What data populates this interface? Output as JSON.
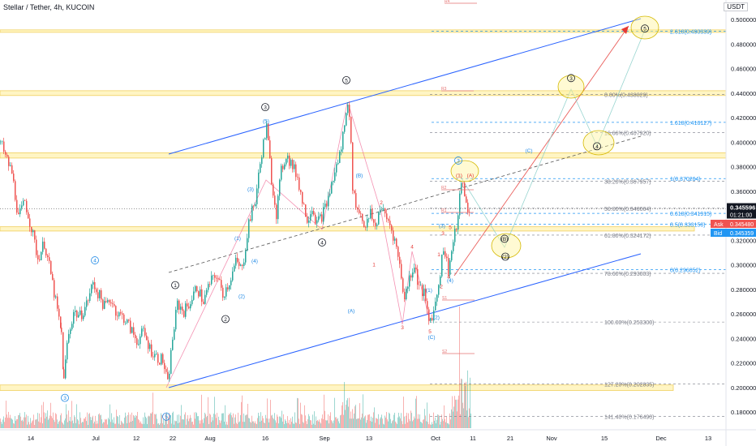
{
  "header": {
    "symbol_title": "Stellar / Tether, 4h, KUCOIN",
    "currency_button": "USDT"
  },
  "price_axis": {
    "ticks": [
      "0.500000",
      "0.480000",
      "0.460000",
      "0.440000",
      "0.420000",
      "0.400000",
      "0.380000",
      "0.360000",
      "0.340000",
      "0.320000",
      "0.300000",
      "0.280000",
      "0.260000",
      "0.240000",
      "0.220000",
      "0.200000",
      "0.180000"
    ],
    "last_price": "0.345596",
    "countdown": "01:21:00",
    "ask_label": "Ask",
    "ask_value": "0.345480",
    "bid_label": "Bid",
    "bid_value": "0.345359"
  },
  "time_axis": {
    "ticks": [
      "14",
      "Jul",
      "12",
      "22",
      "Aug",
      "16",
      "Sep",
      "13",
      "Oct",
      "11",
      "21",
      "Nov",
      "15",
      "Dec",
      "13"
    ]
  },
  "fib_upper": [
    {
      "label": "2.618(0.490339)",
      "price": 0.490339
    },
    {
      "label": "1.618(0.416127)",
      "price": 0.416127
    },
    {
      "label": "1(0.370264)",
      "price": 0.370264
    },
    {
      "label": "0.618(0.341915)",
      "price": 0.341915
    },
    {
      "label": "0.5(0.333158)",
      "price": 0.333158
    },
    {
      "label": "0(0.296052)",
      "price": 0.296052
    }
  ],
  "fib_retracement": [
    {
      "label": "0.00%(0.438829)",
      "price": 0.438829
    },
    {
      "label": "16.66%(0.407920)",
      "price": 0.40792
    },
    {
      "label": "38.20%(0.367957)",
      "price": 0.367957
    },
    {
      "label": "50.00%(0.346064)",
      "price": 0.346064
    },
    {
      "label": "61.80%(0.324172)",
      "price": 0.324172
    },
    {
      "label": "78.60%(0.293003)",
      "price": 0.293003
    },
    {
      "label": "100.00%(0.253300)",
      "price": 0.2533
    },
    {
      "label": "127.20%(0.202835)",
      "price": 0.202835
    },
    {
      "label": "141.40%(0.176490)",
      "price": 0.17649
    }
  ],
  "small_markers": [
    "R4",
    "R3",
    "R2",
    "R1",
    "S1",
    "S2"
  ],
  "wave_labels": [
    {
      "t": "3",
      "color": "#1e88e5",
      "circled": true,
      "x": 80,
      "p": 0.1915
    },
    {
      "t": "4",
      "color": "#1e88e5",
      "circled": true,
      "x": 117,
      "p": 0.3036
    },
    {
      "t": "5",
      "color": "#1e88e5",
      "circled": true,
      "x": 205,
      "p": 0.1762
    },
    {
      "t": "1",
      "color": "#131722",
      "circled": true,
      "x": 216,
      "p": 0.2834
    },
    {
      "t": "2",
      "color": "#131722",
      "circled": true,
      "x": 278,
      "p": 0.2557
    },
    {
      "t": "3",
      "color": "#131722",
      "circled": true,
      "x": 327,
      "p": 0.4285
    },
    {
      "t": "4",
      "color": "#131722",
      "circled": true,
      "x": 397,
      "p": 0.3182
    },
    {
      "t": "5",
      "color": "#131722",
      "circled": true,
      "x": 427,
      "p": 0.4505
    },
    {
      "t": "(1)",
      "color": "#1e88e5",
      "circled": false,
      "x": 293,
      "p": 0.3219
    },
    {
      "t": "(2)",
      "color": "#1e88e5",
      "circled": false,
      "x": 298,
      "p": 0.2744
    },
    {
      "t": "(3)",
      "color": "#1e88e5",
      "circled": false,
      "x": 309,
      "p": 0.3617
    },
    {
      "t": "(4)",
      "color": "#1e88e5",
      "circled": false,
      "x": 314,
      "p": 0.3034
    },
    {
      "t": "(5)",
      "color": "#1e88e5",
      "circled": false,
      "x": 328,
      "p": 0.4174
    },
    {
      "t": "(A)",
      "color": "#1e88e5",
      "circled": false,
      "x": 433,
      "p": 0.2626
    },
    {
      "t": "(B)",
      "color": "#1e88e5",
      "circled": false,
      "x": 443,
      "p": 0.3731
    },
    {
      "t": "(C)",
      "color": "#1e88e5",
      "circled": false,
      "x": 532,
      "p": 0.2411
    },
    {
      "t": "(1)",
      "color": "#1e88e5",
      "circled": false,
      "x": 529,
      "p": 0.2796
    },
    {
      "t": "(2)",
      "color": "#1e88e5",
      "circled": false,
      "x": 538,
      "p": 0.2573
    },
    {
      "t": "(3)",
      "color": "#1e88e5",
      "circled": false,
      "x": 545,
      "p": 0.3322
    },
    {
      "t": "(4)",
      "color": "#1e88e5",
      "circled": false,
      "x": 555,
      "p": 0.2876
    },
    {
      "t": "3",
      "color": "#1e88e5",
      "circled": true,
      "x": 565,
      "p": 0.385
    },
    {
      "t": "(C)",
      "color": "#1e88e5",
      "circled": false,
      "x": 652,
      "p": 0.3932
    },
    {
      "t": "1",
      "color": "#e53935",
      "circled": false,
      "x": 461,
      "p": 0.3003
    },
    {
      "t": "2",
      "color": "#e53935",
      "circled": false,
      "x": 470,
      "p": 0.3508
    },
    {
      "t": "3",
      "color": "#e53935",
      "circled": false,
      "x": 496,
      "p": 0.2492
    },
    {
      "t": "4",
      "color": "#e53935",
      "circled": false,
      "x": 508,
      "p": 0.3148
    },
    {
      "t": "5",
      "color": "#e53935",
      "circled": false,
      "x": 530,
      "p": 0.2459
    },
    {
      "t": "1",
      "color": "#e53935",
      "circled": false,
      "x": 541,
      "p": 0.3085
    },
    {
      "t": "2",
      "color": "#e53935",
      "circled": false,
      "x": 544,
      "p": 0.2824
    },
    {
      "t": "3",
      "color": "#e53935",
      "circled": false,
      "x": 546,
      "p": 0.3257
    },
    {
      "t": "4",
      "color": "#e53935",
      "circled": false,
      "x": 553,
      "p": 0.2905
    },
    {
      "t": "5",
      "color": "#e53935",
      "circled": false,
      "x": 555,
      "p": 0.3306
    },
    {
      "t": "(1)",
      "color": "#e53935",
      "circled": false,
      "x": 566,
      "p": 0.3732
    },
    {
      "t": "(A)",
      "color": "#e53935",
      "circled": false,
      "x": 580,
      "p": 0.3732
    },
    {
      "t": "(B)",
      "color": "#131722",
      "circled": true,
      "x": 622,
      "p": 0.3212
    },
    {
      "t": "(2)",
      "color": "#131722",
      "circled": true,
      "x": 623,
      "p": 0.3066
    },
    {
      "t": "3",
      "color": "#131722",
      "circled": true,
      "x": 704,
      "p": 0.4522
    },
    {
      "t": "4",
      "color": "#131722",
      "circled": true,
      "x": 736,
      "p": 0.3966
    },
    {
      "t": "5",
      "color": "#131722",
      "circled": true,
      "x": 795,
      "p": 0.4926
    }
  ],
  "chart_data": {
    "type": "candlestick",
    "title": "Stellar / Tether, 4h, KUCOIN",
    "y_range": [
      0.168,
      0.508
    ],
    "y_ticks": [
      0.5,
      0.48,
      0.46,
      0.44,
      0.42,
      0.4,
      0.38,
      0.36,
      0.34,
      0.32,
      0.3,
      0.28,
      0.26,
      0.24,
      0.22,
      0.2,
      0.18
    ],
    "x_ticks": [
      "14",
      "Jul",
      "12",
      "22",
      "Aug",
      "16",
      "Sep",
      "13",
      "Oct",
      "11",
      "21",
      "Nov",
      "15",
      "Dec",
      "13"
    ],
    "price_path": [
      {
        "i": 0,
        "p": 0.4
      },
      {
        "i": 6,
        "p": 0.388
      },
      {
        "i": 14,
        "p": 0.375
      },
      {
        "i": 22,
        "p": 0.338
      },
      {
        "i": 30,
        "p": 0.352
      },
      {
        "i": 38,
        "p": 0.33
      },
      {
        "i": 46,
        "p": 0.305
      },
      {
        "i": 54,
        "p": 0.318
      },
      {
        "i": 62,
        "p": 0.292
      },
      {
        "i": 70,
        "p": 0.262
      },
      {
        "i": 75,
        "p": 0.244
      },
      {
        "i": 78,
        "p": 0.205
      },
      {
        "i": 82,
        "p": 0.236
      },
      {
        "i": 90,
        "p": 0.262
      },
      {
        "i": 98,
        "p": 0.258
      },
      {
        "i": 106,
        "p": 0.268
      },
      {
        "i": 114,
        "p": 0.285
      },
      {
        "i": 120,
        "p": 0.277
      },
      {
        "i": 128,
        "p": 0.266
      },
      {
        "i": 136,
        "p": 0.272
      },
      {
        "i": 144,
        "p": 0.26
      },
      {
        "i": 152,
        "p": 0.257
      },
      {
        "i": 160,
        "p": 0.248
      },
      {
        "i": 168,
        "p": 0.238
      },
      {
        "i": 176,
        "p": 0.245
      },
      {
        "i": 184,
        "p": 0.232
      },
      {
        "i": 192,
        "p": 0.225
      },
      {
        "i": 200,
        "p": 0.222
      },
      {
        "i": 206,
        "p": 0.202
      },
      {
        "i": 212,
        "p": 0.24
      },
      {
        "i": 218,
        "p": 0.268
      },
      {
        "i": 226,
        "p": 0.262
      },
      {
        "i": 234,
        "p": 0.27
      },
      {
        "i": 242,
        "p": 0.282
      },
      {
        "i": 250,
        "p": 0.27
      },
      {
        "i": 258,
        "p": 0.285
      },
      {
        "i": 266,
        "p": 0.292
      },
      {
        "i": 274,
        "p": 0.276
      },
      {
        "i": 282,
        "p": 0.286
      },
      {
        "i": 290,
        "p": 0.302
      },
      {
        "i": 298,
        "p": 0.296
      },
      {
        "i": 306,
        "p": 0.335
      },
      {
        "i": 314,
        "p": 0.352
      },
      {
        "i": 322,
        "p": 0.392
      },
      {
        "i": 328,
        "p": 0.412
      },
      {
        "i": 334,
        "p": 0.37
      },
      {
        "i": 340,
        "p": 0.342
      },
      {
        "i": 346,
        "p": 0.376
      },
      {
        "i": 352,
        "p": 0.39
      },
      {
        "i": 360,
        "p": 0.38
      },
      {
        "i": 366,
        "p": 0.372
      },
      {
        "i": 372,
        "p": 0.352
      },
      {
        "i": 378,
        "p": 0.338
      },
      {
        "i": 384,
        "p": 0.347
      },
      {
        "i": 390,
        "p": 0.334
      },
      {
        "i": 396,
        "p": 0.34
      },
      {
        "i": 402,
        "p": 0.35
      },
      {
        "i": 408,
        "p": 0.365
      },
      {
        "i": 414,
        "p": 0.38
      },
      {
        "i": 420,
        "p": 0.395
      },
      {
        "i": 426,
        "p": 0.428
      },
      {
        "i": 430,
        "p": 0.425
      },
      {
        "i": 434,
        "p": 0.365
      },
      {
        "i": 438,
        "p": 0.348
      },
      {
        "i": 444,
        "p": 0.342
      },
      {
        "i": 450,
        "p": 0.33
      },
      {
        "i": 456,
        "p": 0.342
      },
      {
        "i": 462,
        "p": 0.33
      },
      {
        "i": 468,
        "p": 0.348
      },
      {
        "i": 474,
        "p": 0.34
      },
      {
        "i": 480,
        "p": 0.333
      },
      {
        "i": 486,
        "p": 0.32
      },
      {
        "i": 492,
        "p": 0.3
      },
      {
        "i": 498,
        "p": 0.272
      },
      {
        "i": 504,
        "p": 0.29
      },
      {
        "i": 510,
        "p": 0.3
      },
      {
        "i": 516,
        "p": 0.282
      },
      {
        "i": 522,
        "p": 0.276
      },
      {
        "i": 528,
        "p": 0.254
      },
      {
        "i": 534,
        "p": 0.262
      },
      {
        "i": 540,
        "p": 0.285
      },
      {
        "i": 546,
        "p": 0.315
      },
      {
        "i": 552,
        "p": 0.296
      },
      {
        "i": 558,
        "p": 0.318
      },
      {
        "i": 564,
        "p": 0.338
      },
      {
        "i": 568,
        "p": 0.37
      },
      {
        "i": 572,
        "p": 0.355
      },
      {
        "i": 576,
        "p": 0.345
      },
      {
        "i": 580,
        "p": 0.3456
      }
    ]
  },
  "colors": {
    "up": "#26a69a",
    "down": "#ef5350",
    "channel": "#2962ff",
    "wave_path": "#f48fb1",
    "zone_fill": "#fff5c4",
    "zone_edge": "#f0d060",
    "fib": "#2196f3",
    "fib_retr": "#787b86",
    "last_price_bg": "#131722",
    "ask_bg": "#ef5350",
    "bid_bg": "#2196f3"
  }
}
